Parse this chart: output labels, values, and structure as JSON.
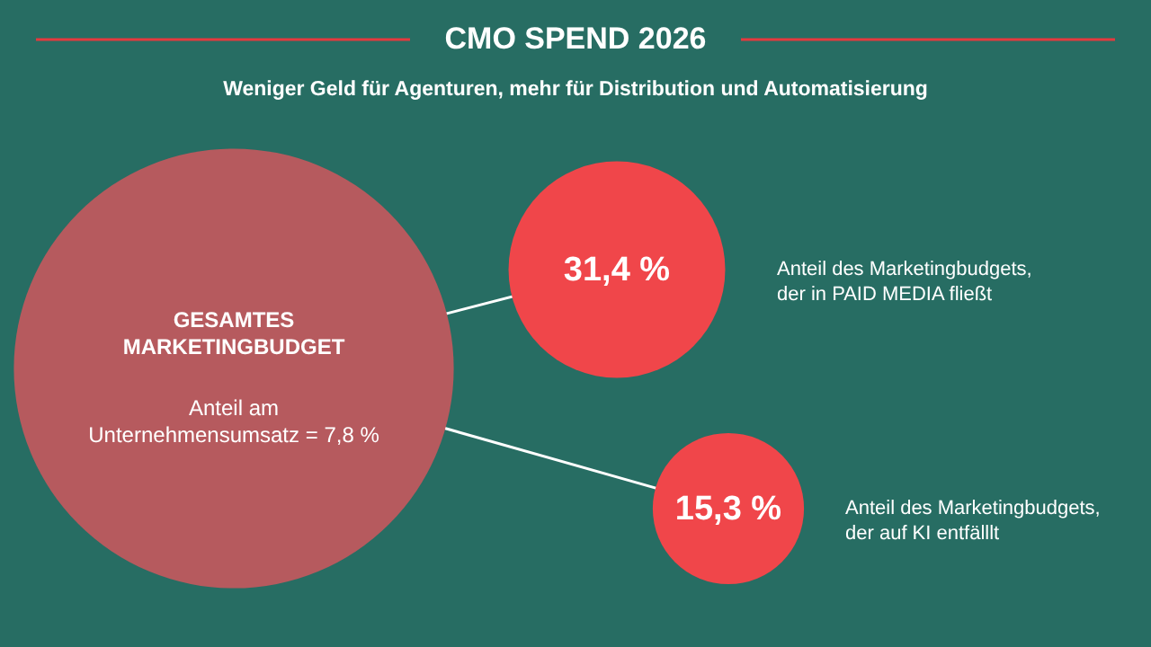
{
  "chart_data": {
    "type": "other",
    "title": "CMO SPEND 2026",
    "subtitle": "Weniger Geld für Agenturen, mehr für Distribution und Automatisierung",
    "categories": [
      "GESAMTES MARKETINGBUDGET",
      "Anteil des Marketingbudgets, der in PAID MEDIA fließt",
      "Anteil des Marketingbudgets, der auf KI entfälllt"
    ],
    "values": [
      7.8,
      31.4,
      15.3
    ],
    "value_labels": [
      "Anteil am Unternehmensumsatz = 7,8 %",
      "31,4 %",
      "15,3 %"
    ],
    "colors": [
      "#b65a5e",
      "#f0464a",
      "#f0464a"
    ]
  }
}
